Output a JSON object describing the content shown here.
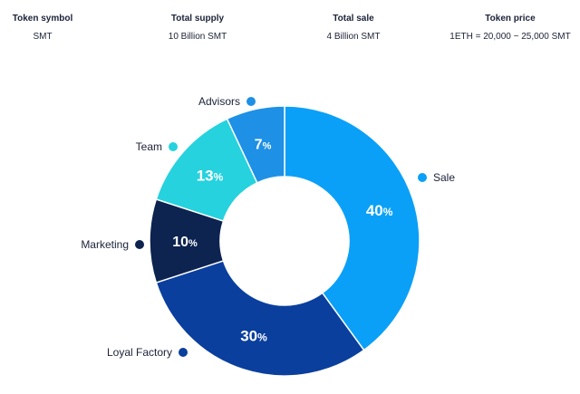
{
  "token_info": [
    {
      "label": "Token symbol",
      "value": "SMT"
    },
    {
      "label": "Total supply",
      "value": "10 Billion SMT"
    },
    {
      "label": "Total sale",
      "value": "4 Billion SMT"
    },
    {
      "label": "Token price",
      "value": "1ETH = 20,000 ~ 25,000 SMT"
    }
  ],
  "chart_data": {
    "type": "pie",
    "donut": true,
    "slices": [
      {
        "name": "Sale",
        "value": 40,
        "label": "40",
        "unit": "%",
        "color": "#0aa0f7"
      },
      {
        "name": "Loyal Factory",
        "value": 30,
        "label": "30",
        "unit": "%",
        "color": "#0a3f9d"
      },
      {
        "name": "Marketing",
        "value": 10,
        "label": "10",
        "unit": "%",
        "color": "#0d2350"
      },
      {
        "name": "Team",
        "value": 13,
        "label": "13",
        "unit": "%",
        "color": "#25d2de"
      },
      {
        "name": "Advisors",
        "value": 7,
        "label": "7",
        "unit": "%",
        "color": "#1e90e6"
      }
    ]
  }
}
